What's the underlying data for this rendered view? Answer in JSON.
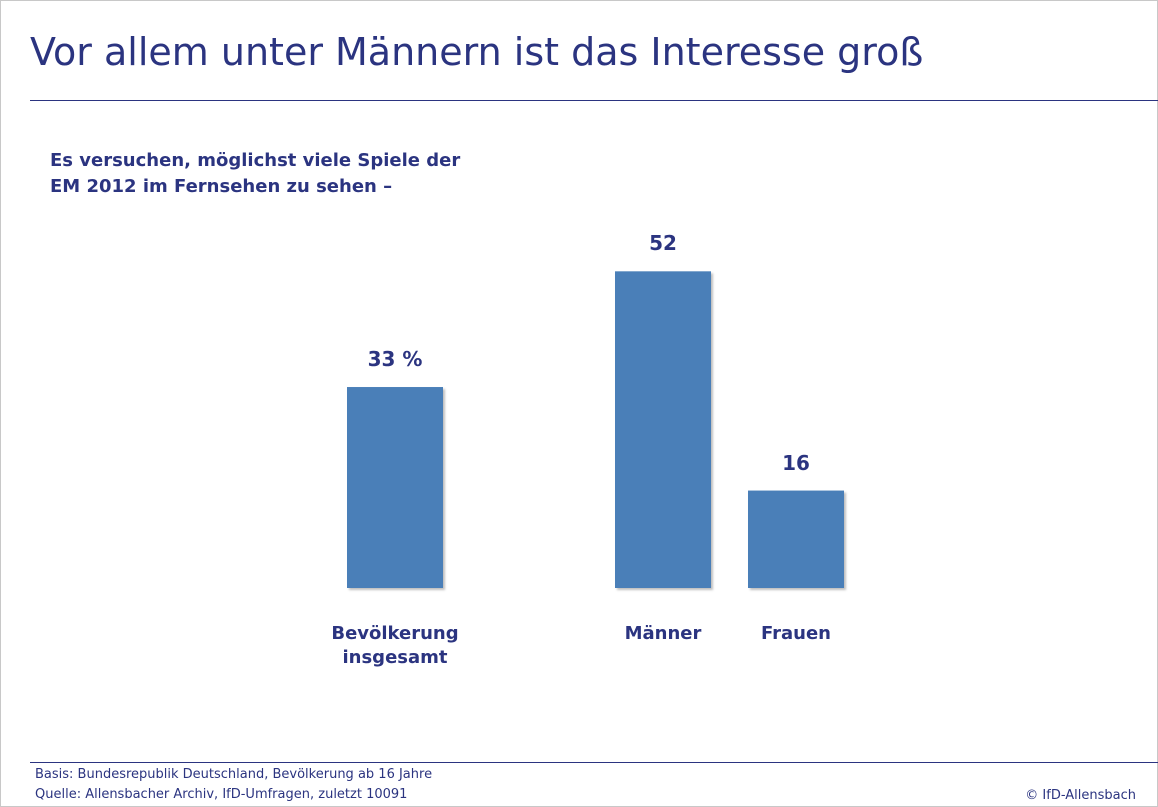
{
  "chart_data": {
    "type": "bar",
    "title": "Vor allem unter Männern ist das Interesse groß",
    "subtitle": "Es versuchen, möglichst viele Spiele der EM 2012 im Fernsehen zu sehen –",
    "categories": [
      "Bevölkerung insgesamt",
      "Männer",
      "Frauen"
    ],
    "values": [
      33,
      52,
      16
    ],
    "value_labels": [
      "33 %",
      "52",
      "16"
    ],
    "color": "#4a7fb8",
    "footnotes": [
      "Basis: Bundesrepublik Deutschland, Bevölkerung ab 16 Jahre",
      "Quelle: Allensbacher Archiv, IfD-Umfragen, zuletzt 10091"
    ],
    "credit": "© IfD-Allensbach"
  }
}
